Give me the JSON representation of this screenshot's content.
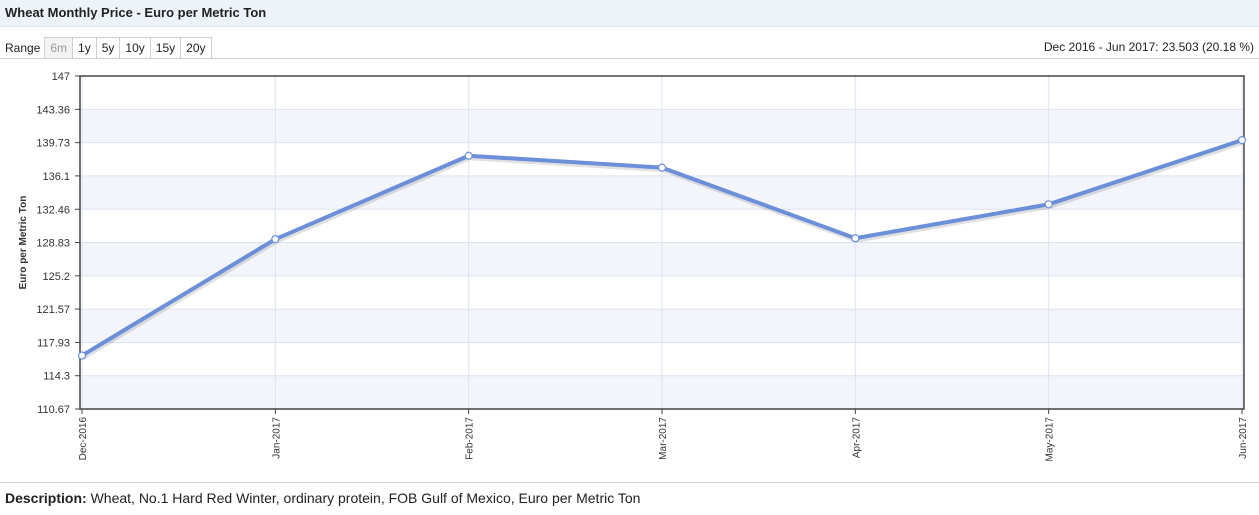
{
  "title": "Wheat Monthly Price - Euro per Metric Ton",
  "range": {
    "label": "Range",
    "buttons": [
      "6m",
      "1y",
      "5y",
      "10y",
      "15y",
      "20y"
    ],
    "disabled": "6m",
    "summary": "Dec 2016 - Jun 2017: 23.503 (20.18 %)"
  },
  "description": {
    "label": "Description:",
    "text": "Wheat, No.1 Hard Red Winter, ordinary protein, FOB Gulf of Mexico, Euro per Metric Ton"
  },
  "colors": {
    "line": "#6b8fd9",
    "band": "#f3f5fb",
    "grid": "#dde4f0"
  },
  "chart_data": {
    "type": "line",
    "categories": [
      "Dec-2016",
      "Jan-2017",
      "Feb-2017",
      "Mar-2017",
      "Apr-2017",
      "May-2017",
      "Jun-2017"
    ],
    "values": [
      116.5,
      129.2,
      138.3,
      137.0,
      129.3,
      133.0,
      140.0
    ],
    "ylabel": "Euro per Metric Ton",
    "yticks": [
      "110.67",
      "114.3",
      "117.93",
      "121.57",
      "125.2",
      "128.83",
      "132.46",
      "136.1",
      "139.73",
      "143.36",
      "147"
    ],
    "ylim": [
      110.67,
      147
    ],
    "grid": true
  }
}
